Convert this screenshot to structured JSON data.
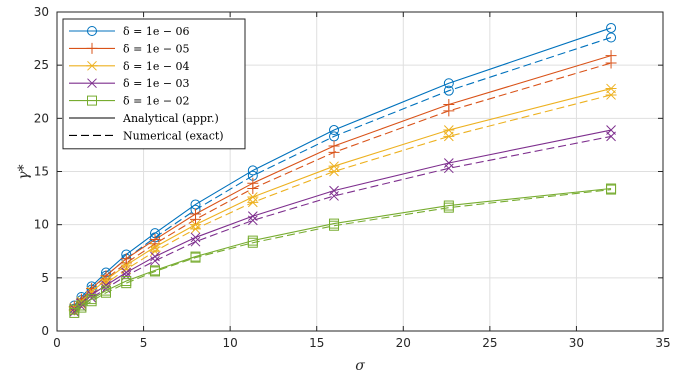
{
  "chart_data": {
    "type": "line",
    "title": "",
    "xlabel": "σ",
    "ylabel": "γ*",
    "xlim": [
      0,
      35
    ],
    "ylim": [
      0,
      30
    ],
    "xticks": [
      0,
      5,
      10,
      15,
      20,
      25,
      30,
      35
    ],
    "yticks": [
      0,
      5,
      10,
      15,
      20,
      25,
      30
    ],
    "grid": true,
    "legend_position": "top-left",
    "x": [
      1,
      1.41,
      2,
      2.83,
      4,
      5.66,
      8,
      11.31,
      16,
      22.63,
      32
    ],
    "series": [
      {
        "name": "δ = 1e − 06",
        "marker": "circle",
        "color": "#0072BD",
        "analytical": [
          2.4,
          3.2,
          4.2,
          5.5,
          7.2,
          9.2,
          11.9,
          15.1,
          18.9,
          23.3,
          28.5
        ],
        "numerical": [
          2.1,
          2.9,
          3.9,
          5.2,
          6.8,
          8.8,
          11.4,
          14.6,
          18.3,
          22.6,
          27.6
        ]
      },
      {
        "name": "δ = 1e − 05",
        "marker": "plus",
        "color": "#D95319",
        "analytical": [
          2.3,
          3.0,
          4.0,
          5.2,
          6.8,
          8.6,
          11.0,
          13.9,
          17.4,
          21.3,
          25.9
        ],
        "numerical": [
          2.0,
          2.7,
          3.7,
          4.9,
          6.4,
          8.2,
          10.5,
          13.4,
          16.8,
          20.7,
          25.2
        ]
      },
      {
        "name": "δ = 1e − 04",
        "marker": "asterisk",
        "color": "#EDB120",
        "analytical": [
          2.2,
          2.8,
          3.7,
          4.8,
          6.2,
          7.9,
          10.0,
          12.6,
          15.5,
          18.9,
          22.8
        ],
        "numerical": [
          1.9,
          2.5,
          3.4,
          4.5,
          5.8,
          7.5,
          9.6,
          12.1,
          15.0,
          18.3,
          22.2
        ]
      },
      {
        "name": "δ = 1e − 03",
        "marker": "cross",
        "color": "#7E2F8E",
        "analytical": [
          2.1,
          2.6,
          3.4,
          4.3,
          5.5,
          7.0,
          8.8,
          10.8,
          13.2,
          15.8,
          18.9
        ],
        "numerical": [
          1.8,
          2.3,
          3.1,
          4.0,
          5.2,
          6.6,
          8.4,
          10.4,
          12.7,
          15.3,
          18.3
        ]
      },
      {
        "name": "δ = 1e − 02",
        "marker": "square",
        "color": "#77AC30",
        "analytical": [
          2.0,
          2.4,
          3.0,
          3.8,
          4.7,
          5.7,
          7.0,
          8.5,
          10.1,
          11.8,
          13.4
        ],
        "numerical": [
          1.7,
          2.2,
          2.8,
          3.6,
          4.5,
          5.6,
          6.9,
          8.3,
          9.9,
          11.6,
          13.3
        ]
      }
    ],
    "line_styles": [
      {
        "name": "Analytical (appr.)",
        "dash": "solid"
      },
      {
        "name": "Numerical (exact)",
        "dash": "dashed"
      }
    ]
  }
}
